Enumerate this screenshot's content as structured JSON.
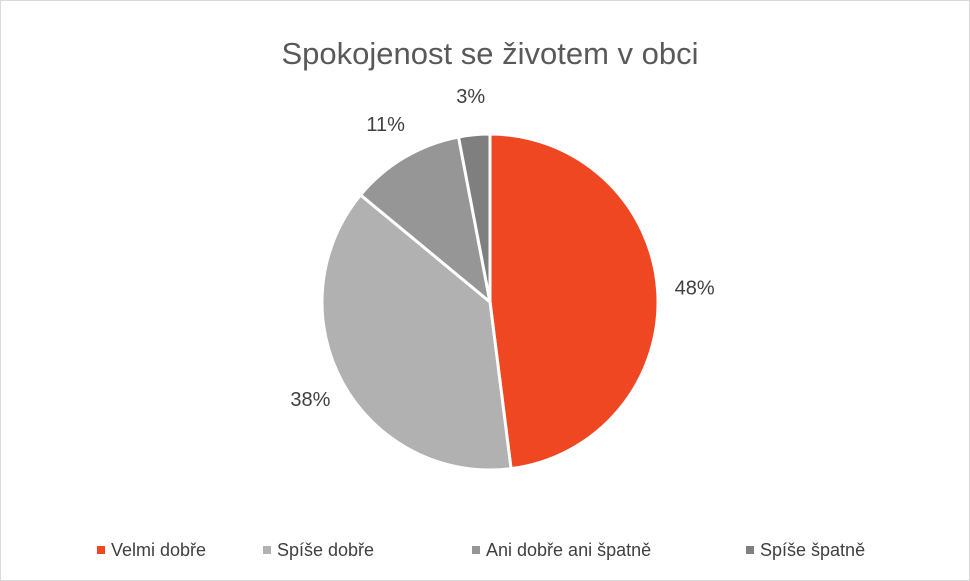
{
  "chart_data": {
    "type": "pie",
    "title": "Spokojenost se životem v obci",
    "categories": [
      "Velmi dobře",
      "Spíše dobře",
      "Ani dobře ani špatně",
      "Spíše špatně"
    ],
    "values": [
      48,
      38,
      11,
      3
    ],
    "value_labels": [
      "48%",
      "38%",
      "11%",
      "3%"
    ],
    "colors": [
      "#ee4722",
      "#b1b1b1",
      "#969696",
      "#7f7f7f"
    ],
    "legend": "bottom"
  }
}
